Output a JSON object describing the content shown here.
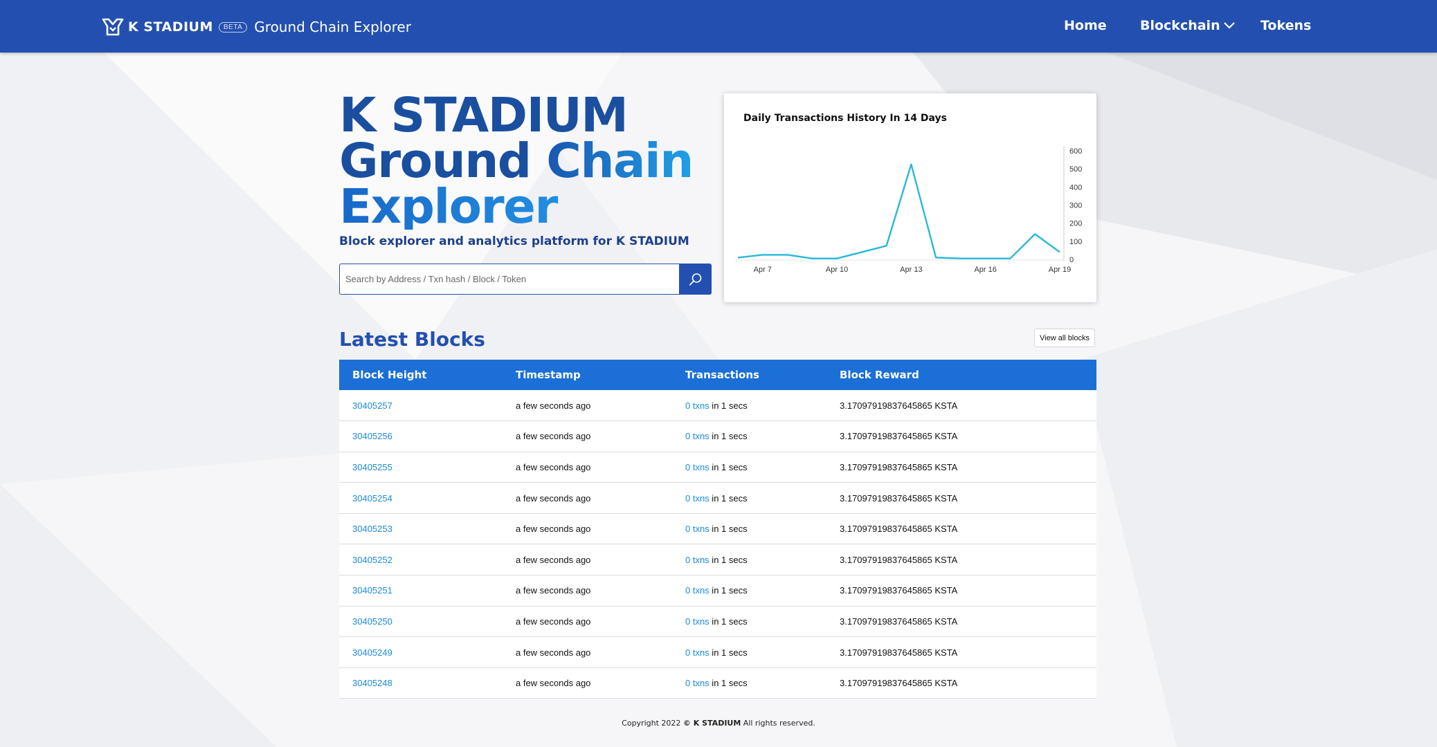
{
  "navbar": {
    "brand_word": "K STADIUM",
    "beta": "BETA",
    "brand_sub": "Ground Chain Explorer",
    "items": [
      {
        "label": "Home"
      },
      {
        "label": "Blockchain"
      },
      {
        "label": "Tokens"
      }
    ]
  },
  "hero": {
    "line1": "K STADIUM",
    "line2a": "Ground ",
    "line2b": "Chain",
    "line3": "Explorer",
    "subtitle": "Block explorer and analytics platform for K STADIUM",
    "search_placeholder": "Search by Address / Txn hash / Block / Token"
  },
  "chart_data": {
    "type": "line",
    "title": "Daily Transactions History In 14 Days",
    "x": [
      "Apr 6",
      "Apr 7",
      "Apr 8",
      "Apr 9",
      "Apr 10",
      "Apr 11",
      "Apr 12",
      "Apr 13",
      "Apr 14",
      "Apr 15",
      "Apr 16",
      "Apr 17",
      "Apr 18",
      "Apr 19"
    ],
    "x_tick_labels": [
      "Apr 7",
      "Apr 10",
      "Apr 13",
      "Apr 16",
      "Apr 19"
    ],
    "y_ticks": [
      0,
      100,
      200,
      300,
      400,
      500,
      600
    ],
    "ylim": [
      0,
      600
    ],
    "series": [
      {
        "values": [
          10,
          25,
          25,
          5,
          5,
          40,
          75,
          525,
          10,
          5,
          5,
          5,
          140,
          40
        ],
        "color": "#26b9d8"
      }
    ],
    "xlabel": "",
    "ylabel": "",
    "y_axis_side": "right",
    "grid": false
  },
  "blocks": {
    "title": "Latest Blocks",
    "view_all": "View all blocks",
    "columns": [
      "Block Height",
      "Timestamp",
      "Transactions",
      "Block Reward"
    ],
    "rows": [
      {
        "height": "30405257",
        "time": "a few seconds ago",
        "txns": "0 txns",
        "txn_suffix": " in 1 secs",
        "reward": "3.17097919837645865 KSTA"
      },
      {
        "height": "30405256",
        "time": "a few seconds ago",
        "txns": "0 txns",
        "txn_suffix": " in 1 secs",
        "reward": "3.17097919837645865 KSTA"
      },
      {
        "height": "30405255",
        "time": "a few seconds ago",
        "txns": "0 txns",
        "txn_suffix": " in 1 secs",
        "reward": "3.17097919837645865 KSTA"
      },
      {
        "height": "30405254",
        "time": "a few seconds ago",
        "txns": "0 txns",
        "txn_suffix": " in 1 secs",
        "reward": "3.17097919837645865 KSTA"
      },
      {
        "height": "30405253",
        "time": "a few seconds ago",
        "txns": "0 txns",
        "txn_suffix": " in 1 secs",
        "reward": "3.17097919837645865 KSTA"
      },
      {
        "height": "30405252",
        "time": "a few seconds ago",
        "txns": "0 txns",
        "txn_suffix": " in 1 secs",
        "reward": "3.17097919837645865 KSTA"
      },
      {
        "height": "30405251",
        "time": "a few seconds ago",
        "txns": "0 txns",
        "txn_suffix": " in 1 secs",
        "reward": "3.17097919837645865 KSTA"
      },
      {
        "height": "30405250",
        "time": "a few seconds ago",
        "txns": "0 txns",
        "txn_suffix": " in 1 secs",
        "reward": "3.17097919837645865 KSTA"
      },
      {
        "height": "30405249",
        "time": "a few seconds ago",
        "txns": "0 txns",
        "txn_suffix": " in 1 secs",
        "reward": "3.17097919837645865 KSTA"
      },
      {
        "height": "30405248",
        "time": "a few seconds ago",
        "txns": "0 txns",
        "txn_suffix": " in 1 secs",
        "reward": "3.17097919837645865 KSTA"
      }
    ]
  },
  "footer": {
    "prefix": "Copyright 2022 ",
    "brand": "© K STADIUM",
    "suffix": " All rights reserved."
  },
  "colors": {
    "navbar": "#2350b0",
    "table_header": "#1b6fd6",
    "link": "#1a8adc",
    "chart_line": "#26b9d8"
  }
}
